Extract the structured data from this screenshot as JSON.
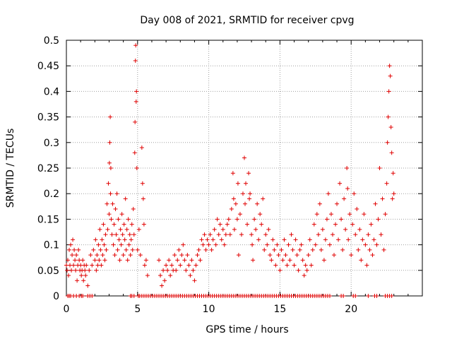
{
  "chart_data": {
    "type": "scatter",
    "title": "Day 008 of 2021, SRMTID for receiver cpvg",
    "xlabel": "GPS time / hours",
    "ylabel": "SRMTID / TECUs",
    "xlim": [
      0,
      25
    ],
    "ylim": [
      0,
      0.5
    ],
    "xticks": [
      "0",
      "5",
      "10",
      "15",
      "20"
    ],
    "yticks": [
      "0",
      "0.05",
      "0.1",
      "0.15",
      "0.2",
      "0.25",
      "0.3",
      "0.35",
      "0.4",
      "0.45",
      "0.5"
    ],
    "grid": true,
    "marker": "+",
    "color": "#e00000",
    "series": [
      {
        "name": "SRMTID",
        "points": [
          [
            0.0,
            0.06
          ],
          [
            0.05,
            0.05
          ],
          [
            0.1,
            0.07
          ],
          [
            0.15,
            0.04
          ],
          [
            0.2,
            0.09
          ],
          [
            0.25,
            0.06
          ],
          [
            0.3,
            0.1
          ],
          [
            0.35,
            0.05
          ],
          [
            0.4,
            0.08
          ],
          [
            0.45,
            0.11
          ],
          [
            0.5,
            0.06
          ],
          [
            0.55,
            0.09
          ],
          [
            0.6,
            0.07
          ],
          [
            0.65,
            0.05
          ],
          [
            0.7,
            0.08
          ],
          [
            0.75,
            0.03
          ],
          [
            0.8,
            0.06
          ],
          [
            0.85,
            0.09
          ],
          [
            0.9,
            0.07
          ],
          [
            0.95,
            0.05
          ],
          [
            1.0,
            0.06
          ],
          [
            1.05,
            0.04
          ],
          [
            1.1,
            0.05
          ],
          [
            1.15,
            0.07
          ],
          [
            1.2,
            0.03
          ],
          [
            1.25,
            0.06
          ],
          [
            1.3,
            0.05
          ],
          [
            1.35,
            0.04
          ],
          [
            1.4,
            0.06
          ],
          [
            1.5,
            0.02
          ],
          [
            1.6,
            0.05
          ],
          [
            1.7,
            0.08
          ],
          [
            1.8,
            0.06
          ],
          [
            1.9,
            0.09
          ],
          [
            2.0,
            0.07
          ],
          [
            2.05,
            0.11
          ],
          [
            2.1,
            0.05
          ],
          [
            2.15,
            0.08
          ],
          [
            2.2,
            0.06
          ],
          [
            2.25,
            0.1
          ],
          [
            2.3,
            0.07
          ],
          [
            2.35,
            0.13
          ],
          [
            2.4,
            0.09
          ],
          [
            2.45,
            0.06
          ],
          [
            2.5,
            0.11
          ],
          [
            2.55,
            0.08
          ],
          [
            2.6,
            0.14
          ],
          [
            2.65,
            0.1
          ],
          [
            2.7,
            0.07
          ],
          [
            2.75,
            0.12
          ],
          [
            2.8,
            0.09
          ],
          [
            2.85,
            0.18
          ],
          [
            2.9,
            0.13
          ],
          [
            2.95,
            0.22
          ],
          [
            3.0,
            0.16
          ],
          [
            3.02,
            0.26
          ],
          [
            3.05,
            0.3
          ],
          [
            3.08,
            0.35
          ],
          [
            3.1,
            0.2
          ],
          [
            3.12,
            0.25
          ],
          [
            3.15,
            0.15
          ],
          [
            3.2,
            0.12
          ],
          [
            3.25,
            0.18
          ],
          [
            3.3,
            0.1
          ],
          [
            3.35,
            0.14
          ],
          [
            3.4,
            0.08
          ],
          [
            3.45,
            0.17
          ],
          [
            3.5,
            0.12
          ],
          [
            3.55,
            0.2
          ],
          [
            3.6,
            0.09
          ],
          [
            3.65,
            0.15
          ],
          [
            3.7,
            0.11
          ],
          [
            3.75,
            0.07
          ],
          [
            3.8,
            0.13
          ],
          [
            3.85,
            0.1
          ],
          [
            3.9,
            0.16
          ],
          [
            3.95,
            0.12
          ],
          [
            4.0,
            0.08
          ],
          [
            4.05,
            0.14
          ],
          [
            4.1,
            0.11
          ],
          [
            4.15,
            0.19
          ],
          [
            4.2,
            0.09
          ],
          [
            4.25,
            0.13
          ],
          [
            4.3,
            0.07
          ],
          [
            4.35,
            0.15
          ],
          [
            4.4,
            0.1
          ],
          [
            4.45,
            0.12
          ],
          [
            4.5,
            0.08
          ],
          [
            4.55,
            0.11
          ],
          [
            4.6,
            0.14
          ],
          [
            4.65,
            0.09
          ],
          [
            4.7,
            0.17
          ],
          [
            4.75,
            0.12
          ],
          [
            4.8,
            0.28
          ],
          [
            4.82,
            0.34
          ],
          [
            4.85,
            0.46
          ],
          [
            4.87,
            0.49
          ],
          [
            4.9,
            0.38
          ],
          [
            4.92,
            0.4
          ],
          [
            4.95,
            0.25
          ],
          [
            5.0,
            0.09
          ],
          [
            5.1,
            0.13
          ],
          [
            5.2,
            0.08
          ],
          [
            5.3,
            0.29
          ],
          [
            5.35,
            0.22
          ],
          [
            5.4,
            0.19
          ],
          [
            5.45,
            0.14
          ],
          [
            5.5,
            0.06
          ],
          [
            5.6,
            0.07
          ],
          [
            5.7,
            0.04
          ],
          [
            6.5,
            0.07
          ],
          [
            6.6,
            0.04
          ],
          [
            6.7,
            0.02
          ],
          [
            6.8,
            0.05
          ],
          [
            6.9,
            0.03
          ],
          [
            7.0,
            0.06
          ],
          [
            7.1,
            0.05
          ],
          [
            7.2,
            0.07
          ],
          [
            7.3,
            0.04
          ],
          [
            7.4,
            0.06
          ],
          [
            7.5,
            0.05
          ],
          [
            7.6,
            0.08
          ],
          [
            7.7,
            0.05
          ],
          [
            7.8,
            0.07
          ],
          [
            7.9,
            0.09
          ],
          [
            8.0,
            0.06
          ],
          [
            8.1,
            0.08
          ],
          [
            8.2,
            0.1
          ],
          [
            8.3,
            0.07
          ],
          [
            8.4,
            0.05
          ],
          [
            8.5,
            0.08
          ],
          [
            8.6,
            0.06
          ],
          [
            8.7,
            0.04
          ],
          [
            8.8,
            0.07
          ],
          [
            8.9,
            0.05
          ],
          [
            9.0,
            0.03
          ],
          [
            9.1,
            0.06
          ],
          [
            9.2,
            0.08
          ],
          [
            9.3,
            0.09
          ],
          [
            9.4,
            0.07
          ],
          [
            9.5,
            0.11
          ],
          [
            9.6,
            0.1
          ],
          [
            9.7,
            0.12
          ],
          [
            9.8,
            0.09
          ],
          [
            9.9,
            0.11
          ],
          [
            10.0,
            0.1
          ],
          [
            10.1,
            0.12
          ],
          [
            10.2,
            0.09
          ],
          [
            10.3,
            0.11
          ],
          [
            10.4,
            0.13
          ],
          [
            10.5,
            0.1
          ],
          [
            10.6,
            0.15
          ],
          [
            10.7,
            0.12
          ],
          [
            10.8,
            0.14
          ],
          [
            10.9,
            0.11
          ],
          [
            11.0,
            0.13
          ],
          [
            11.1,
            0.1
          ],
          [
            11.2,
            0.12
          ],
          [
            11.3,
            0.14
          ],
          [
            11.4,
            0.15
          ],
          [
            11.5,
            0.12
          ],
          [
            11.6,
            0.17
          ],
          [
            11.7,
            0.24
          ],
          [
            11.75,
            0.19
          ],
          [
            11.8,
            0.13
          ],
          [
            11.9,
            0.18
          ],
          [
            12.0,
            0.15
          ],
          [
            12.05,
            0.22
          ],
          [
            12.1,
            0.08
          ],
          [
            12.2,
            0.16
          ],
          [
            12.3,
            0.12
          ],
          [
            12.4,
            0.2
          ],
          [
            12.5,
            0.27
          ],
          [
            12.55,
            0.18
          ],
          [
            12.6,
            0.22
          ],
          [
            12.7,
            0.14
          ],
          [
            12.8,
            0.24
          ],
          [
            12.85,
            0.19
          ],
          [
            12.9,
            0.2
          ],
          [
            13.0,
            0.12
          ],
          [
            13.05,
            0.1
          ],
          [
            13.1,
            0.07
          ],
          [
            13.2,
            0.15
          ],
          [
            13.3,
            0.13
          ],
          [
            13.4,
            0.18
          ],
          [
            13.5,
            0.11
          ],
          [
            13.6,
            0.16
          ],
          [
            13.7,
            0.14
          ],
          [
            13.8,
            0.19
          ],
          [
            13.9,
            0.09
          ],
          [
            14.0,
            0.12
          ],
          [
            14.1,
            0.1
          ],
          [
            14.2,
            0.13
          ],
          [
            14.3,
            0.08
          ],
          [
            14.4,
            0.07
          ],
          [
            14.5,
            0.11
          ],
          [
            14.6,
            0.09
          ],
          [
            14.7,
            0.06
          ],
          [
            14.8,
            0.1
          ],
          [
            14.9,
            0.08
          ],
          [
            15.0,
            0.05
          ],
          [
            15.1,
            0.09
          ],
          [
            15.2,
            0.07
          ],
          [
            15.3,
            0.11
          ],
          [
            15.4,
            0.08
          ],
          [
            15.5,
            0.06
          ],
          [
            15.6,
            0.1
          ],
          [
            15.7,
            0.07
          ],
          [
            15.8,
            0.12
          ],
          [
            15.9,
            0.09
          ],
          [
            16.0,
            0.06
          ],
          [
            16.1,
            0.11
          ],
          [
            16.2,
            0.08
          ],
          [
            16.3,
            0.05
          ],
          [
            16.4,
            0.09
          ],
          [
            16.5,
            0.1
          ],
          [
            16.6,
            0.07
          ],
          [
            16.7,
            0.04
          ],
          [
            16.8,
            0.06
          ],
          [
            16.9,
            0.05
          ],
          [
            17.0,
            0.08
          ],
          [
            17.1,
            0.11
          ],
          [
            17.2,
            0.06
          ],
          [
            17.3,
            0.09
          ],
          [
            17.4,
            0.14
          ],
          [
            17.5,
            0.1
          ],
          [
            17.6,
            0.16
          ],
          [
            17.7,
            0.12
          ],
          [
            17.8,
            0.18
          ],
          [
            17.9,
            0.09
          ],
          [
            18.0,
            0.13
          ],
          [
            18.1,
            0.07
          ],
          [
            18.2,
            0.11
          ],
          [
            18.3,
            0.15
          ],
          [
            18.4,
            0.2
          ],
          [
            18.5,
            0.1
          ],
          [
            18.6,
            0.16
          ],
          [
            18.7,
            0.12
          ],
          [
            18.8,
            0.08
          ],
          [
            18.9,
            0.14
          ],
          [
            19.0,
            0.18
          ],
          [
            19.1,
            0.11
          ],
          [
            19.2,
            0.22
          ],
          [
            19.3,
            0.15
          ],
          [
            19.4,
            0.09
          ],
          [
            19.5,
            0.19
          ],
          [
            19.6,
            0.13
          ],
          [
            19.7,
            0.25
          ],
          [
            19.75,
            0.21
          ],
          [
            19.8,
            0.11
          ],
          [
            19.9,
            0.16
          ],
          [
            20.0,
            0.08
          ],
          [
            20.1,
            0.14
          ],
          [
            20.2,
            0.2
          ],
          [
            20.3,
            0.12
          ],
          [
            20.4,
            0.17
          ],
          [
            20.5,
            0.09
          ],
          [
            20.6,
            0.13
          ],
          [
            20.7,
            0.07
          ],
          [
            20.8,
            0.11
          ],
          [
            20.9,
            0.16
          ],
          [
            21.0,
            0.1
          ],
          [
            21.1,
            0.06
          ],
          [
            21.2,
            0.12
          ],
          [
            21.3,
            0.09
          ],
          [
            21.4,
            0.14
          ],
          [
            21.5,
            0.08
          ],
          [
            21.6,
            0.11
          ],
          [
            21.7,
            0.18
          ],
          [
            21.8,
            0.1
          ],
          [
            21.9,
            0.15
          ],
          [
            22.0,
            0.25
          ],
          [
            22.1,
            0.12
          ],
          [
            22.2,
            0.19
          ],
          [
            22.3,
            0.09
          ],
          [
            22.4,
            0.16
          ],
          [
            22.5,
            0.22
          ],
          [
            22.55,
            0.3
          ],
          [
            22.6,
            0.35
          ],
          [
            22.65,
            0.4
          ],
          [
            22.7,
            0.45
          ],
          [
            22.75,
            0.43
          ],
          [
            22.8,
            0.33
          ],
          [
            22.85,
            0.28
          ],
          [
            22.9,
            0.19
          ],
          [
            22.95,
            0.24
          ],
          [
            23.0,
            0.2
          ]
        ]
      }
    ],
    "zero_points_x": [
      0.1,
      0.2,
      0.3,
      0.5,
      0.7,
      0.9,
      1.05,
      1.15,
      1.5,
      1.65,
      1.8,
      4.5,
      4.6,
      4.75,
      5.05,
      5.15,
      5.3,
      5.45,
      5.6,
      5.75,
      5.9,
      6.05,
      6.2,
      6.35,
      6.5,
      6.65,
      6.8,
      6.95,
      7.1,
      7.25,
      7.4,
      7.55,
      7.7,
      7.85,
      8.0,
      8.15,
      8.3,
      8.45,
      8.6,
      8.75,
      8.9,
      9.05,
      9.2,
      9.35,
      9.5,
      9.65,
      9.8,
      9.95,
      10.1,
      10.25,
      10.4,
      10.55,
      10.7,
      10.85,
      11.0,
      11.15,
      11.3,
      11.45,
      11.6,
      11.75,
      11.9,
      12.05,
      12.2,
      12.35,
      12.5,
      12.65,
      12.8,
      12.95,
      13.1,
      13.25,
      13.4,
      13.55,
      13.7,
      13.85,
      14.0,
      14.15,
      14.3,
      14.45,
      14.6,
      14.75,
      14.9,
      15.05,
      15.2,
      15.35,
      15.5,
      15.65,
      15.8,
      15.95,
      16.1,
      16.25,
      16.4,
      16.55,
      16.7,
      16.85,
      17.0,
      17.15,
      17.3,
      17.45,
      17.6,
      17.75,
      17.9,
      18.05,
      18.2,
      18.35,
      18.5,
      19.3,
      19.45,
      20.15,
      20.3,
      21.2,
      21.65,
      21.8,
      22.4,
      22.55,
      22.7,
      22.85
    ]
  }
}
